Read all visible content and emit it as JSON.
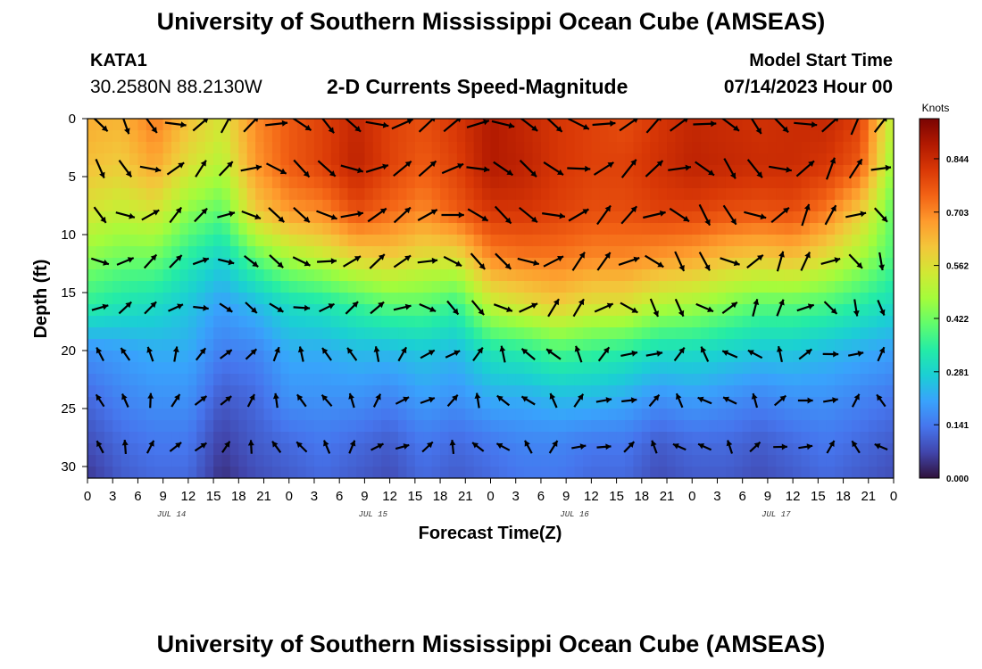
{
  "header": {
    "title": "University of Southern Mississippi Ocean Cube (AMSEAS)",
    "station_id": "KATA1",
    "station_coords": "30.2580N  88.2130W",
    "subtitle": "2-D Currents Speed-Magnitude",
    "model_start_label": "Model Start Time",
    "model_start_value": "07/14/2023 Hour 00"
  },
  "footer": {
    "title": "University of Southern Mississippi Ocean Cube (AMSEAS)"
  },
  "chart_data": {
    "type": "heatmap",
    "title": "2-D Currents Speed-Magnitude",
    "xlabel": "Forecast Time(Z)",
    "ylabel": "Depth (ft)",
    "x_range_hours": [
      0,
      96
    ],
    "y_range_ft": [
      0,
      31
    ],
    "x_tick_labels": [
      "0",
      "3",
      "6",
      "9",
      "12",
      "15",
      "18",
      "21",
      "0",
      "3",
      "6",
      "9",
      "12",
      "15",
      "18",
      "21",
      "0",
      "3",
      "6",
      "9",
      "12",
      "15",
      "18",
      "21",
      "0",
      "3",
      "6",
      "9",
      "12",
      "15",
      "18",
      "21",
      "0"
    ],
    "y_tick_labels": [
      "0",
      "5",
      "10",
      "15",
      "20",
      "25",
      "30"
    ],
    "day_labels": [
      "JUL 14",
      "JUL 15",
      "JUL 16",
      "JUL 17"
    ],
    "colorbar": {
      "unit": "Knots",
      "tick_labels": [
        "0.844",
        "0.703",
        "0.562",
        "0.422",
        "0.281",
        "0.141",
        "0.000"
      ],
      "range": [
        0.0,
        0.95
      ],
      "colors": [
        "#30123b",
        "#4145ab",
        "#4675ed",
        "#39a2fc",
        "#1bcfd4",
        "#24eca6",
        "#61fc6c",
        "#a4fc3b",
        "#d1e834",
        "#f3c63a",
        "#fe9b2d",
        "#f36315",
        "#d93806",
        "#b11901",
        "#7a0403"
      ]
    },
    "series": [
      {
        "name": "speed_knots_by_depth",
        "depths_ft": [
          0,
          4,
          8,
          12,
          16,
          20,
          24,
          28,
          31
        ],
        "values": [
          [
            0.65,
            0.64,
            0.72,
            0.62,
            0.55,
            0.7,
            0.76,
            0.8,
            0.85,
            0.8,
            0.78,
            0.82,
            0.88,
            0.85,
            0.82,
            0.8,
            0.78,
            0.82,
            0.85,
            0.84,
            0.83,
            0.84,
            0.85,
            0.8,
            0.5
          ],
          [
            0.62,
            0.6,
            0.66,
            0.56,
            0.5,
            0.68,
            0.76,
            0.8,
            0.86,
            0.8,
            0.76,
            0.8,
            0.88,
            0.86,
            0.82,
            0.8,
            0.8,
            0.83,
            0.86,
            0.85,
            0.84,
            0.84,
            0.82,
            0.76,
            0.45
          ],
          [
            0.55,
            0.52,
            0.55,
            0.45,
            0.4,
            0.6,
            0.68,
            0.7,
            0.78,
            0.74,
            0.7,
            0.76,
            0.82,
            0.82,
            0.8,
            0.78,
            0.78,
            0.8,
            0.8,
            0.78,
            0.77,
            0.78,
            0.72,
            0.6,
            0.4
          ],
          [
            0.45,
            0.42,
            0.42,
            0.34,
            0.28,
            0.4,
            0.48,
            0.52,
            0.58,
            0.6,
            0.56,
            0.56,
            0.7,
            0.72,
            0.72,
            0.7,
            0.7,
            0.68,
            0.66,
            0.62,
            0.6,
            0.62,
            0.56,
            0.48,
            0.38
          ],
          [
            0.35,
            0.32,
            0.3,
            0.26,
            0.2,
            0.24,
            0.3,
            0.32,
            0.36,
            0.4,
            0.4,
            0.36,
            0.52,
            0.56,
            0.6,
            0.56,
            0.56,
            0.5,
            0.48,
            0.44,
            0.4,
            0.4,
            0.38,
            0.34,
            0.3
          ],
          [
            0.18,
            0.2,
            0.22,
            0.22,
            0.15,
            0.16,
            0.22,
            0.22,
            0.24,
            0.24,
            0.26,
            0.24,
            0.32,
            0.34,
            0.38,
            0.36,
            0.34,
            0.3,
            0.3,
            0.28,
            0.26,
            0.26,
            0.24,
            0.22,
            0.2
          ],
          [
            0.12,
            0.16,
            0.18,
            0.18,
            0.1,
            0.12,
            0.18,
            0.18,
            0.18,
            0.16,
            0.2,
            0.18,
            0.22,
            0.22,
            0.24,
            0.24,
            0.22,
            0.18,
            0.2,
            0.18,
            0.16,
            0.18,
            0.18,
            0.16,
            0.14
          ],
          [
            0.08,
            0.12,
            0.14,
            0.14,
            0.06,
            0.1,
            0.12,
            0.14,
            0.12,
            0.1,
            0.14,
            0.12,
            0.14,
            0.16,
            0.16,
            0.14,
            0.14,
            0.1,
            0.12,
            0.12,
            0.1,
            0.12,
            0.14,
            0.12,
            0.1
          ],
          [
            0.05,
            0.1,
            0.12,
            0.12,
            0.04,
            0.08,
            0.1,
            0.12,
            0.1,
            0.08,
            0.12,
            0.1,
            0.12,
            0.14,
            0.14,
            0.12,
            0.12,
            0.08,
            0.1,
            0.1,
            0.08,
            0.1,
            0.12,
            0.1,
            0.08
          ]
        ]
      }
    ]
  }
}
